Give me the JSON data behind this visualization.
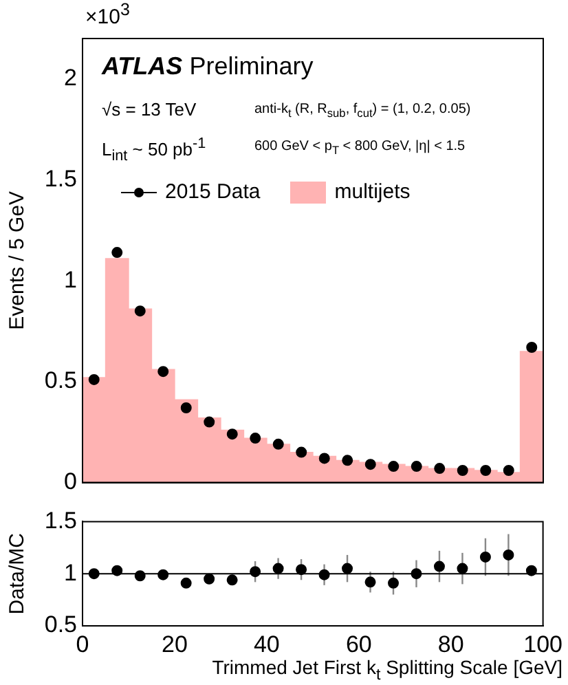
{
  "chart_data": [
    {
      "type": "histogram",
      "ylabel": "Events / 5 GeV",
      "annotations": [
        "×10$^{3}$",
        "ATLAS Preliminary",
        "√s = 13 TeV",
        "L$_{int}$ ~ 50 pb$^{-1}$",
        "anti-k$_{t}$ (R, R$_{sub}$, f$_{cut}$) = (1, 0.2, 0.05)",
        "600 GeV < p$_{T}$ < 800 GeV, |η| < 1.5"
      ],
      "bins": [
        0,
        5,
        10,
        15,
        20,
        25,
        30,
        35,
        40,
        45,
        50,
        55,
        60,
        65,
        70,
        75,
        80,
        85,
        90,
        95,
        100
      ],
      "series": [
        {
          "type": "scatter",
          "name": "2015 Data",
          "color": "#000000",
          "marker": "circle",
          "x": [
            2.5,
            7.5,
            12.5,
            17.5,
            22.5,
            27.5,
            32.5,
            37.5,
            42.5,
            47.5,
            52.5,
            57.5,
            62.5,
            67.5,
            72.5,
            77.5,
            82.5,
            87.5,
            92.5,
            97.5
          ],
          "values": [
            0.51,
            1.14,
            0.85,
            0.55,
            0.37,
            0.3,
            0.24,
            0.22,
            0.19,
            0.15,
            0.12,
            0.11,
            0.09,
            0.08,
            0.08,
            0.07,
            0.06,
            0.06,
            0.06,
            0.67
          ]
        },
        {
          "type": "histogram",
          "name": "multijets",
          "color": "#ffb3b3",
          "values": [
            0.52,
            1.11,
            0.86,
            0.56,
            0.41,
            0.32,
            0.26,
            0.22,
            0.19,
            0.15,
            0.13,
            0.11,
            0.1,
            0.09,
            0.08,
            0.07,
            0.07,
            0.06,
            0.05,
            0.65
          ]
        }
      ],
      "xlim": [
        0,
        100
      ],
      "xticks": [
        0,
        20,
        40,
        60,
        80,
        100
      ],
      "ylim": [
        0,
        2.2
      ],
      "yticks": [
        0,
        0.5,
        1,
        1.5,
        2
      ],
      "tick_labels": "y",
      "legend": "top",
      "grid": false
    },
    {
      "type": "scatter",
      "xlabel": "Trimmed Jet First k$_{t}$ Splitting Scale [GeV]",
      "ylabel": "Data/MC",
      "color": "#000000",
      "marker": "circle",
      "x": [
        2.5,
        7.5,
        12.5,
        17.5,
        22.5,
        27.5,
        32.5,
        37.5,
        42.5,
        47.5,
        52.5,
        57.5,
        62.5,
        67.5,
        72.5,
        77.5,
        82.5,
        87.5,
        92.5,
        97.5
      ],
      "values": [
        1.0,
        1.03,
        0.98,
        0.99,
        0.91,
        0.95,
        0.94,
        1.02,
        1.05,
        1.04,
        0.99,
        1.05,
        0.92,
        0.91,
        1.0,
        1.07,
        1.05,
        1.16,
        1.18,
        1.03
      ],
      "errors": [
        0.02,
        0.02,
        0.02,
        0.03,
        0.04,
        0.05,
        0.05,
        0.1,
        0.1,
        0.1,
        0.1,
        0.13,
        0.1,
        0.11,
        0.13,
        0.15,
        0.15,
        0.18,
        0.2,
        0.03
      ],
      "ref_lines": [
        {
          "axis": "y",
          "value": 1,
          "color": "#000000"
        }
      ],
      "xlim": [
        0,
        100
      ],
      "xticks": [
        0,
        20,
        40,
        60,
        80,
        100
      ],
      "ylim": [
        0.5,
        1.5
      ],
      "yticks": [
        0.5,
        1,
        1.5
      ],
      "grid": false
    }
  ]
}
